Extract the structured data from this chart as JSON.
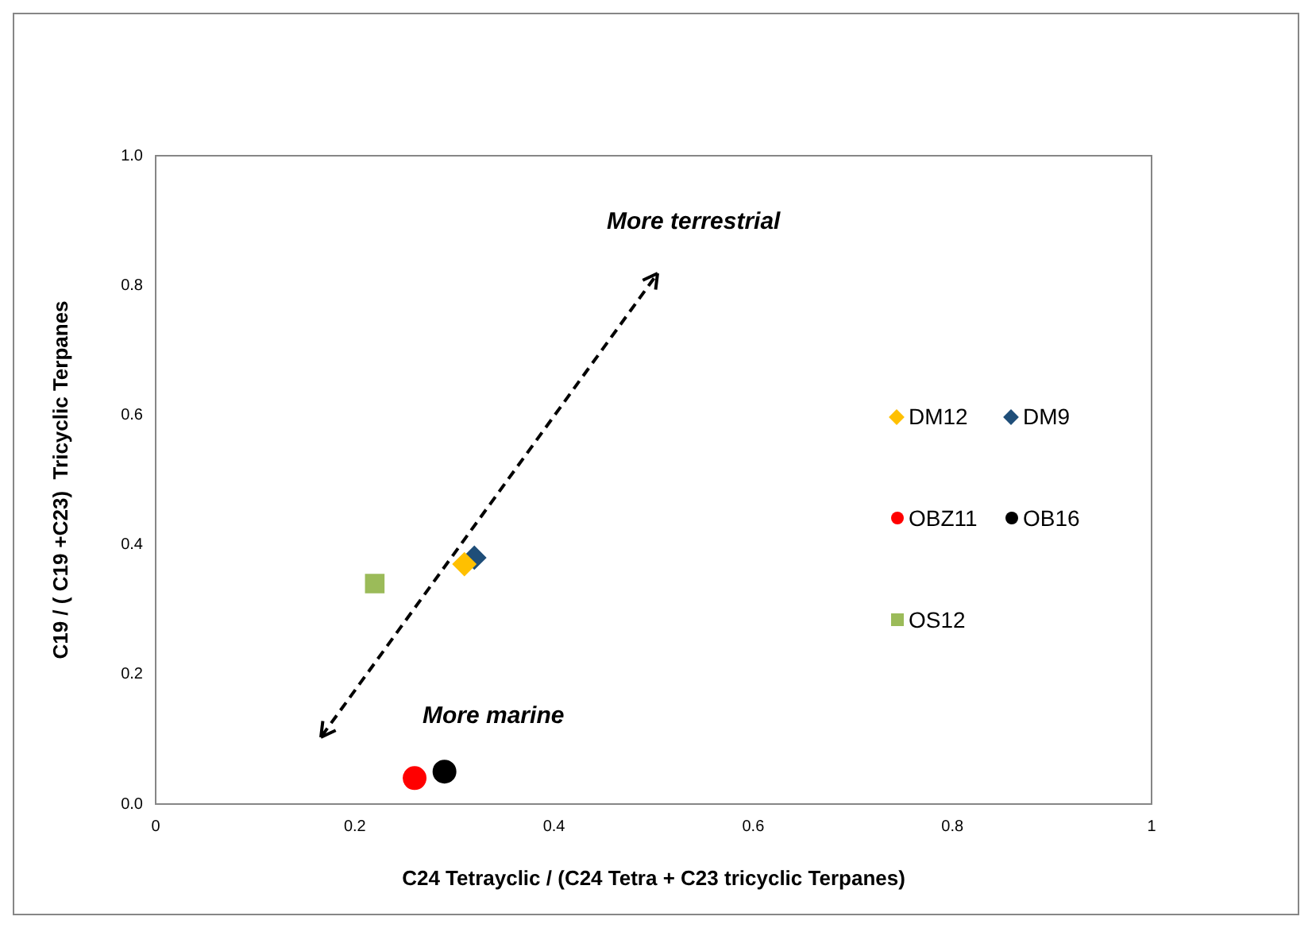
{
  "chart_data": {
    "type": "scatter",
    "xlabel": "C24 Tetrayclic / (C24 Tetra + C23 tricyclic Terpanes)",
    "ylabel": "C19 / ( C19 +C23)  Tricyclic Terpanes",
    "series": [
      {
        "name": "DM12",
        "color": "#ffc000",
        "marker": "diamond",
        "x": [
          0.31
        ],
        "values": [
          0.37
        ]
      },
      {
        "name": "DM9",
        "color": "#1f4e79",
        "marker": "diamond",
        "x": [
          0.32
        ],
        "values": [
          0.38
        ]
      },
      {
        "name": "OBZ11",
        "color": "#ff0000",
        "marker": "circle",
        "x": [
          0.26
        ],
        "values": [
          0.04
        ]
      },
      {
        "name": "OB16",
        "color": "#000000",
        "marker": "circle",
        "x": [
          0.29
        ],
        "values": [
          0.05
        ]
      },
      {
        "name": "OS12",
        "color": "#9bbb59",
        "marker": "square",
        "x": [
          0.22
        ],
        "values": [
          0.34
        ]
      }
    ],
    "xlim": [
      0,
      1
    ],
    "xticks": [
      0,
      0.2,
      0.4,
      0.6,
      0.8,
      1
    ],
    "ylim": [
      0,
      1
    ],
    "yticks": [
      {
        "value": 0,
        "label": "0.0"
      },
      {
        "value": 0.2,
        "label": "0.2"
      },
      {
        "value": 0.4,
        "label": "0.4"
      },
      {
        "value": 0.6,
        "label": "0.6"
      },
      {
        "value": 0.8,
        "label": "0.8"
      },
      {
        "value": 1,
        "label": "1.0"
      }
    ],
    "grid": false,
    "legend": "right",
    "annotations": [
      "More terrestrial",
      "More marine"
    ]
  }
}
